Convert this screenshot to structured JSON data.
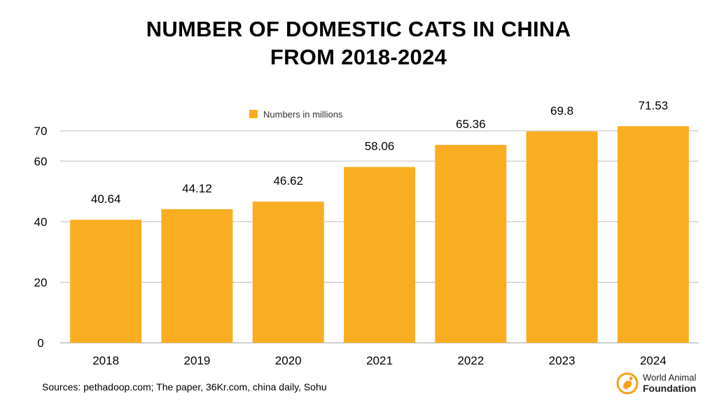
{
  "title_line_1": "NUMBER OF DOMESTIC CATS IN CHINA",
  "title_line_2": "FROM 2018-2024",
  "source": "Sources: pethadoop.com; The paper, 36Kr.com, china daily, Sohu",
  "logo": {
    "line_1": "World Animal",
    "line_2": "Foundation",
    "accent_color": "#F5A21B"
  },
  "colors": {
    "bar": "#F9AE22",
    "gridline": "#BDBDBD",
    "text": "#000000"
  },
  "chart_data": {
    "type": "bar",
    "title": "NUMBER OF DOMESTIC CATS IN CHINA FROM 2018-2024",
    "categories": [
      "2018",
      "2019",
      "2020",
      "2021",
      "2022",
      "2023",
      "2024"
    ],
    "series": [
      {
        "name": "Numbers in millions",
        "values": [
          40.64,
          44.12,
          46.62,
          58.06,
          65.36,
          69.8,
          71.53
        ],
        "labels": [
          "40.64",
          "44.12",
          "46.62",
          "58.06",
          "65.36",
          "69.8",
          "71.53"
        ]
      }
    ],
    "y_ticks": [
      0,
      20,
      40,
      60,
      70
    ],
    "ylim": [
      0,
      70
    ],
    "xlabel": "",
    "ylabel": "",
    "legend_position": "top-center",
    "grid": true
  }
}
